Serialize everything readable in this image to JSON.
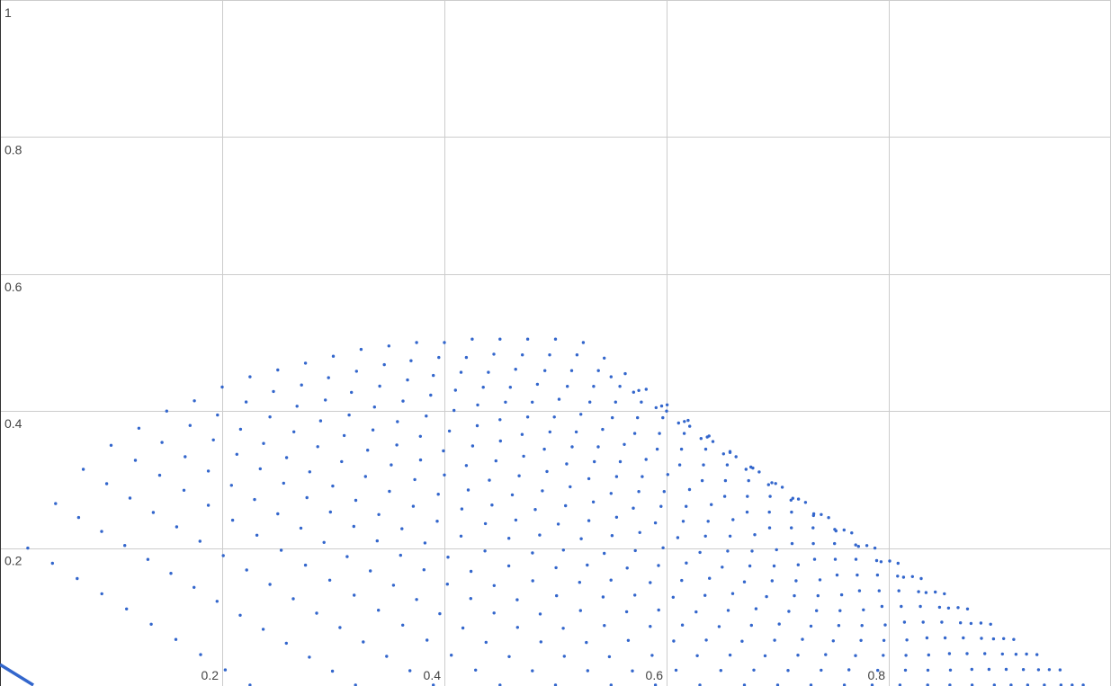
{
  "colors": {
    "series": "#3366cc",
    "grid": "#cccccc",
    "axis": "#333333",
    "tick_text": "#444444"
  },
  "chart_data": {
    "type": "scatter",
    "title": "",
    "xlabel": "",
    "ylabel": "",
    "xlim": [
      0,
      1
    ],
    "ylim": [
      0,
      1
    ],
    "grid": true,
    "legend": "none",
    "xticks": [
      0.2,
      0.4,
      0.6,
      0.8
    ],
    "yticks": [
      0.2,
      0.4,
      0.6,
      0.8,
      1
    ],
    "xtick_labels": [
      "0.2",
      "0.4",
      "0.6",
      "0.8"
    ],
    "ytick_labels": [
      "0.2",
      "0.4",
      "0.6",
      "0.8",
      "1"
    ],
    "series": [
      {
        "points": [
          [
            0.025,
            0.2
          ],
          [
            0.05,
            0.265
          ],
          [
            0.075,
            0.315
          ],
          [
            0.1,
            0.35
          ],
          [
            0.125,
            0.375
          ],
          [
            0.15,
            0.4
          ],
          [
            0.175,
            0.415
          ],
          [
            0.2,
            0.435
          ],
          [
            0.225,
            0.45
          ],
          [
            0.25,
            0.46
          ],
          [
            0.275,
            0.47
          ],
          [
            0.3,
            0.48
          ],
          [
            0.325,
            0.49
          ],
          [
            0.35,
            0.495
          ],
          [
            0.375,
            0.5
          ],
          [
            0.4,
            0.5
          ],
          [
            0.425,
            0.505
          ],
          [
            0.45,
            0.505
          ],
          [
            0.475,
            0.505
          ],
          [
            0.5,
            0.505
          ],
          [
            0.525,
            0.5
          ],
          [
            0.55,
            0.45
          ],
          [
            0.575,
            0.43
          ],
          [
            0.6,
            0.4
          ],
          [
            0.625,
            0.375
          ],
          [
            0.65,
            0.35
          ],
          [
            0.675,
            0.33
          ],
          [
            0.7,
            0.3
          ],
          [
            0.725,
            0.28
          ],
          [
            0.75,
            0.25
          ],
          [
            0.775,
            0.23
          ],
          [
            0.8,
            0.2
          ],
          [
            0.825,
            0.175
          ],
          [
            0.85,
            0.15
          ],
          [
            0.875,
            0.125
          ],
          [
            0.9,
            0.1
          ],
          [
            0.925,
            0.075
          ],
          [
            0.95,
            0.05
          ],
          [
            0.975,
            0.025
          ]
        ],
        "lines": [
          {
            "x0": 0.025,
            "y0": 0.2,
            "x1": 0.225,
            "y1": 0.0
          },
          {
            "x0": 0.05,
            "y0": 0.265,
            "x1": 0.32,
            "y1": 0.0
          },
          {
            "x0": 0.075,
            "y0": 0.315,
            "x1": 0.39,
            "y1": 0.0
          },
          {
            "x0": 0.1,
            "y0": 0.35,
            "x1": 0.45,
            "y1": 0.0
          },
          {
            "x0": 0.125,
            "y0": 0.375,
            "x1": 0.5,
            "y1": 0.0
          },
          {
            "x0": 0.15,
            "y0": 0.4,
            "x1": 0.55,
            "y1": 0.0
          },
          {
            "x0": 0.175,
            "y0": 0.415,
            "x1": 0.59,
            "y1": 0.0
          },
          {
            "x0": 0.2,
            "y0": 0.435,
            "x1": 0.63,
            "y1": 0.0
          },
          {
            "x0": 0.225,
            "y0": 0.45,
            "x1": 0.67,
            "y1": 0.0
          },
          {
            "x0": 0.25,
            "y0": 0.46,
            "x1": 0.7,
            "y1": 0.0
          },
          {
            "x0": 0.275,
            "y0": 0.47,
            "x1": 0.73,
            "y1": 0.0
          },
          {
            "x0": 0.3,
            "y0": 0.48,
            "x1": 0.76,
            "y1": 0.0
          },
          {
            "x0": 0.325,
            "y0": 0.49,
            "x1": 0.785,
            "y1": 0.0
          },
          {
            "x0": 0.35,
            "y0": 0.495,
            "x1": 0.81,
            "y1": 0.0
          },
          {
            "x0": 0.375,
            "y0": 0.5,
            "x1": 0.835,
            "y1": 0.0
          },
          {
            "x0": 0.4,
            "y0": 0.5,
            "x1": 0.855,
            "y1": 0.0
          },
          {
            "x0": 0.425,
            "y0": 0.505,
            "x1": 0.875,
            "y1": 0.0
          },
          {
            "x0": 0.45,
            "y0": 0.505,
            "x1": 0.895,
            "y1": 0.0
          },
          {
            "x0": 0.475,
            "y0": 0.505,
            "x1": 0.91,
            "y1": 0.0
          },
          {
            "x0": 0.5,
            "y0": 0.505,
            "x1": 0.925,
            "y1": 0.0
          },
          {
            "x0": 0.525,
            "y0": 0.5,
            "x1": 0.94,
            "y1": 0.0
          },
          {
            "x0": 0.55,
            "y0": 0.45,
            "x1": 0.955,
            "y1": 0.0
          },
          {
            "x0": 0.575,
            "y0": 0.43,
            "x1": 0.965,
            "y1": 0.0
          },
          {
            "x0": 0.6,
            "y0": 0.4,
            "x1": 0.975,
            "y1": 0.0
          }
        ],
        "segment": {
          "x0": 0.0,
          "y0": 0.03,
          "x1": 0.03,
          "y1": 0.0
        }
      }
    ]
  }
}
